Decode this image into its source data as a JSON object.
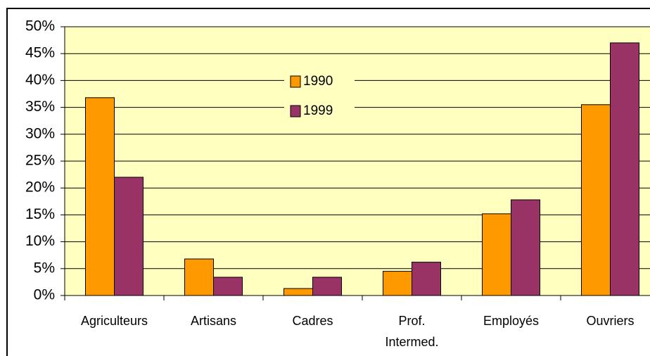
{
  "chart_data": {
    "type": "bar",
    "categories": [
      "Agriculteurs",
      "Artisans",
      "Cadres",
      "Prof. Intermed.",
      "Employés",
      "Ouvriers"
    ],
    "series": [
      {
        "name": "1990",
        "color": "#ff9900",
        "values": [
          36.8,
          6.8,
          1.3,
          4.5,
          15.2,
          35.5
        ]
      },
      {
        "name": "1999",
        "color": "#993366",
        "values": [
          22,
          3.4,
          3.4,
          6.2,
          17.8,
          47
        ]
      }
    ],
    "ylim": [
      0,
      50
    ],
    "yticks": [
      {
        "value": 0,
        "label": "0%"
      },
      {
        "value": 5,
        "label": "5%"
      },
      {
        "value": 10,
        "label": "10%"
      },
      {
        "value": 15,
        "label": "15%"
      },
      {
        "value": 20,
        "label": "20%"
      },
      {
        "value": 25,
        "label": "25%"
      },
      {
        "value": 30,
        "label": "30%"
      },
      {
        "value": 35,
        "label": "35%"
      },
      {
        "value": 40,
        "label": "40%"
      },
      {
        "value": 45,
        "label": "45%"
      },
      {
        "value": 50,
        "label": "50%"
      }
    ],
    "grid": true,
    "plot_background": "#ffffc0"
  }
}
